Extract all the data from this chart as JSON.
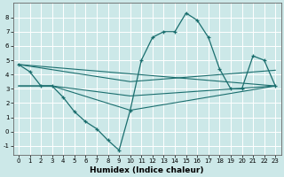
{
  "xlabel": "Humidex (Indice chaleur)",
  "bg_color": "#cce8e8",
  "line_color": "#1a6e6e",
  "grid_color": "#ffffff",
  "ylim": [
    -1.6,
    9.0
  ],
  "xlim": [
    -0.5,
    23.5
  ],
  "yticks": [
    -1,
    0,
    1,
    2,
    3,
    4,
    5,
    6,
    7,
    8
  ],
  "xticks": [
    0,
    1,
    2,
    3,
    4,
    5,
    6,
    7,
    8,
    9,
    10,
    11,
    12,
    13,
    14,
    15,
    16,
    17,
    18,
    19,
    20,
    21,
    22,
    23
  ],
  "main_line": {
    "x": [
      0,
      1,
      2,
      3,
      4,
      5,
      6,
      7,
      8,
      9,
      10,
      11,
      12,
      13,
      14,
      15,
      16,
      17,
      18,
      19,
      20,
      21,
      22,
      23
    ],
    "y": [
      4.7,
      4.2,
      3.2,
      3.2,
      2.4,
      1.4,
      0.7,
      0.2,
      -0.6,
      -1.3,
      1.5,
      5.0,
      6.6,
      7.0,
      7.0,
      8.3,
      7.8,
      6.6,
      4.4,
      3.0,
      3.0,
      5.3,
      5.0,
      3.2
    ]
  },
  "straight_lines": [
    {
      "x": [
        0,
        23
      ],
      "y": [
        4.7,
        3.2
      ]
    },
    {
      "x": [
        0,
        10,
        23
      ],
      "y": [
        4.7,
        3.5,
        4.3
      ]
    },
    {
      "x": [
        0,
        3,
        10,
        23
      ],
      "y": [
        3.2,
        3.2,
        2.5,
        3.2
      ]
    },
    {
      "x": [
        0,
        3,
        10,
        23
      ],
      "y": [
        3.2,
        3.2,
        1.5,
        3.2
      ]
    }
  ]
}
